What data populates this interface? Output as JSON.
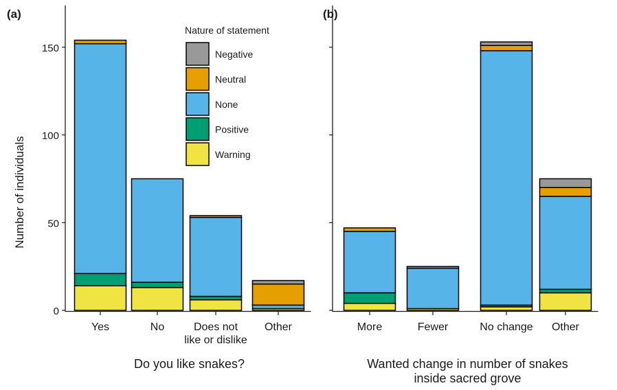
{
  "chart_data": {
    "type": "bar",
    "stacked": true,
    "ylabel": "Number of individuals",
    "yticks": [
      0,
      50,
      100,
      150
    ],
    "ylim": [
      0,
      175
    ],
    "series_order": [
      "Warning",
      "Positive",
      "None",
      "Neutral",
      "Negative"
    ],
    "colors": {
      "Negative": "#999999",
      "Neutral": "#E69F00",
      "None": "#56B4E9",
      "Positive": "#009E73",
      "Warning": "#F0E442"
    },
    "legend": {
      "title": "Nature of statement",
      "entries": [
        "Negative",
        "Neutral",
        "None",
        "Positive",
        "Warning"
      ],
      "placement": "inside panel (a), top-right"
    },
    "panels": [
      {
        "tag": "(a)",
        "xlabel": "Do you like snakes?",
        "categories": [
          "Yes",
          "No",
          "Does not\nlike or dislike",
          "Other"
        ],
        "series": [
          {
            "name": "Warning",
            "values": [
              14,
              13,
              6,
              1
            ]
          },
          {
            "name": "Positive",
            "values": [
              7,
              3,
              2,
              0
            ]
          },
          {
            "name": "None",
            "values": [
              131,
              59,
              45,
              2
            ]
          },
          {
            "name": "Neutral",
            "values": [
              2,
              0,
              1,
              12
            ]
          },
          {
            "name": "Negative",
            "values": [
              0,
              0,
              0,
              2
            ]
          }
        ]
      },
      {
        "tag": "(b)",
        "xlabel": "Wanted change in number of snakes\ninside sacred grove",
        "categories": [
          "More",
          "Fewer",
          "No change",
          "Other"
        ],
        "series": [
          {
            "name": "Warning",
            "values": [
              4,
              1,
              2,
              10
            ]
          },
          {
            "name": "Positive",
            "values": [
              6,
              0,
              1,
              2
            ]
          },
          {
            "name": "None",
            "values": [
              35,
              23,
              145,
              53
            ]
          },
          {
            "name": "Neutral",
            "values": [
              2,
              0,
              3,
              5
            ]
          },
          {
            "name": "Negative",
            "values": [
              0,
              1,
              2,
              5
            ]
          }
        ]
      }
    ]
  }
}
